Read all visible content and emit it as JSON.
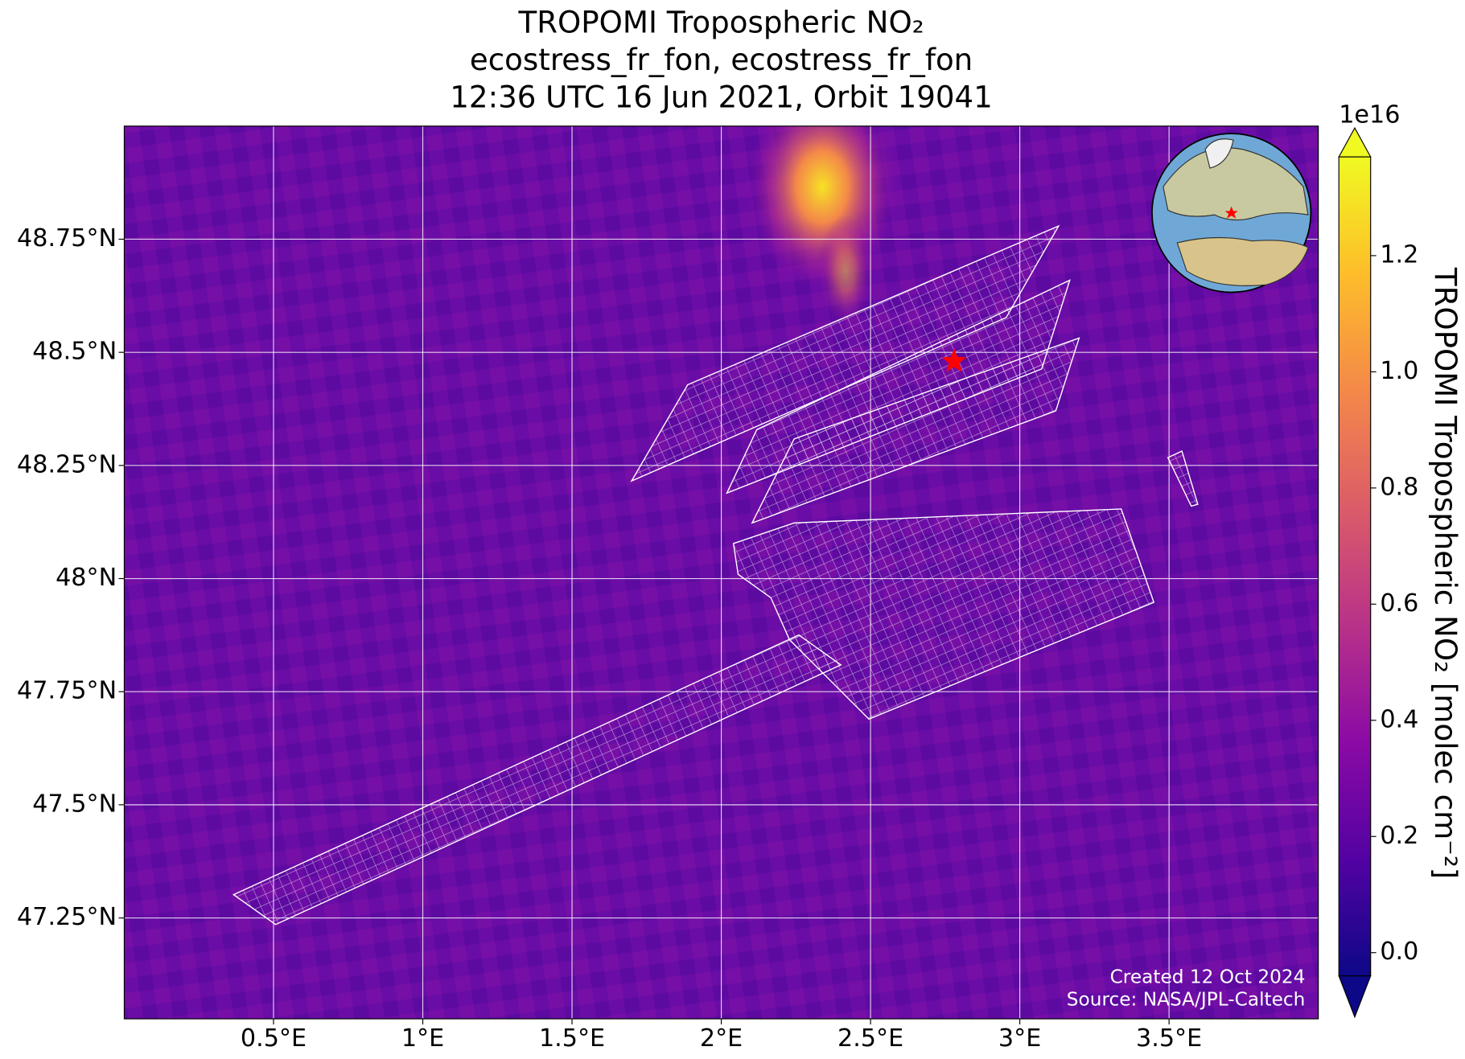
{
  "chart_data": {
    "type": "map",
    "title": [
      "TROPOMI Tropospheric NO₂",
      "ecostress_fr_fon, ecostress_fr_fon",
      "12:36 UTC 16 Jun 2021, Orbit 19041"
    ],
    "xlim": [
      0.0,
      4.0
    ],
    "ylim": [
      47.027,
      49.0
    ],
    "xticks": [
      {
        "value": 0.5,
        "label": "0.5°E"
      },
      {
        "value": 1.0,
        "label": "1°E"
      },
      {
        "value": 1.5,
        "label": "1.5°E"
      },
      {
        "value": 2.0,
        "label": "2°E"
      },
      {
        "value": 2.5,
        "label": "2.5°E"
      },
      {
        "value": 3.0,
        "label": "3°E"
      },
      {
        "value": 3.5,
        "label": "3.5°E"
      }
    ],
    "yticks": [
      {
        "value": 47.25,
        "label": "47.25°N"
      },
      {
        "value": 47.5,
        "label": "47.5°N"
      },
      {
        "value": 47.75,
        "label": "47.75°N"
      },
      {
        "value": 48.0,
        "label": "48°N"
      },
      {
        "value": 48.25,
        "label": "48.25°N"
      },
      {
        "value": 48.5,
        "label": "48.5°N"
      },
      {
        "value": 48.75,
        "label": "48.75°N"
      }
    ],
    "grid": true,
    "marker": {
      "x": 2.78,
      "y": 48.48,
      "color": "#ff0000"
    },
    "colorbar": {
      "label": "TROPOMI Tropospheric NO₂ [molec cm⁻²]",
      "offset_text": "1e16",
      "clim": [
        -0.04,
        1.37
      ],
      "ticks": [
        {
          "value": 0.0,
          "label": "0.0"
        },
        {
          "value": 0.2,
          "label": "0.2"
        },
        {
          "value": 0.4,
          "label": "0.4"
        },
        {
          "value": 0.6,
          "label": "0.6"
        },
        {
          "value": 0.8,
          "label": "0.8"
        },
        {
          "value": 1.0,
          "label": "1.0"
        },
        {
          "value": 1.2,
          "label": "1.2"
        }
      ],
      "colors": [
        "#0d0887",
        "#5302a3",
        "#8b0aa5",
        "#b83289",
        "#db5c68",
        "#f48849",
        "#febd2a",
        "#f0f921"
      ]
    },
    "footer": [
      "Created 12 Oct 2024",
      "Source: NASA/JPL-Caltech"
    ]
  }
}
